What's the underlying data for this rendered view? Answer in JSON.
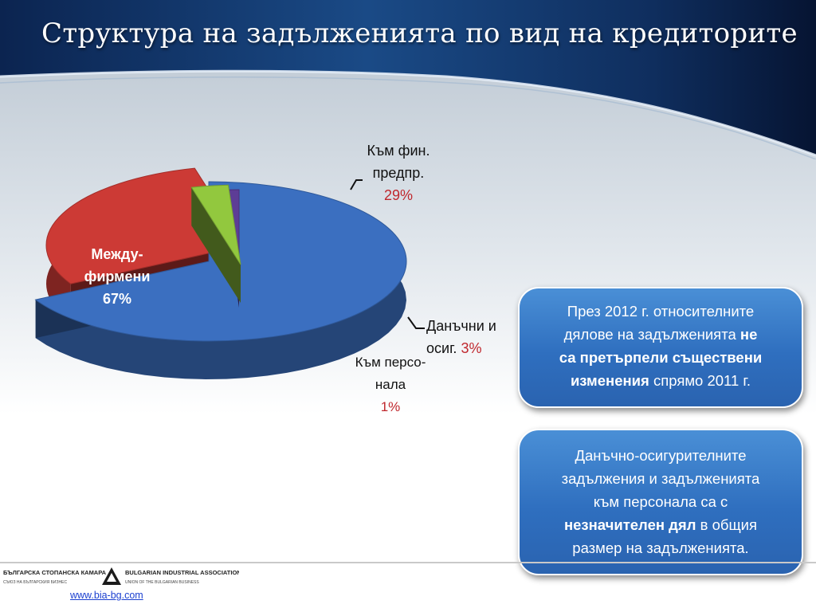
{
  "title": "Структура на задълженията по вид на кредиторите",
  "chart_data": {
    "type": "pie",
    "slices": [
      {
        "name": "Между-фирмени",
        "label_lines": [
          "Между-",
          "фирмени"
        ],
        "value": 67,
        "value_label": "67%",
        "color": "#3b6fc0"
      },
      {
        "name": "Към фин. предпр.",
        "label_lines": [
          "Към фин.",
          "предпр."
        ],
        "value": 29,
        "value_label": "29%",
        "color": "#cc3a35"
      },
      {
        "name": "Данъчни и осиг.",
        "label_lines": [
          "Данъчни и",
          "осиг."
        ],
        "value": 3,
        "value_label": "3%",
        "color": "#92c83e"
      },
      {
        "name": "Към персонала",
        "label_lines": [
          "Към персо-",
          "нала"
        ],
        "value": 1,
        "value_label": "1%",
        "color": "#5d3d96"
      }
    ],
    "value_label_color": "#c0272d"
  },
  "box1": {
    "line1": "През 2012 г. относителните",
    "line2_plain": "дялове на задълженията ",
    "line2_bold": "не",
    "line3_bold": "са претърпели съществени",
    "line4_bold": "изменения",
    "line4_plain": " спрямо 2011 г."
  },
  "box2": {
    "line1": "Данъчно-осигурителните",
    "line2": "задължения и задълженията",
    "line3": "към персонала са с",
    "line4_bold": "незначителен дял",
    "line4_plain": " в общия",
    "line5": "размер на задълженията."
  },
  "footer": {
    "logo_bg": "БЪЛГАРСКА СТОПАНСКА КАМАРА",
    "logo_bg_sub": "СЪЮЗ НА БЪЛГАРСКИЯ БИЗНЕС",
    "logo_en": "BULGARIAN INDUSTRIAL ASSOCIATION",
    "logo_en_sub": "UNION OF THE BULGARIAN BUSINESS",
    "link": "www.bia-bg.com"
  },
  "colors": {
    "header_dark": "#0a1f45",
    "header_mid": "#1d4f8e",
    "band": "#d7dee5"
  }
}
